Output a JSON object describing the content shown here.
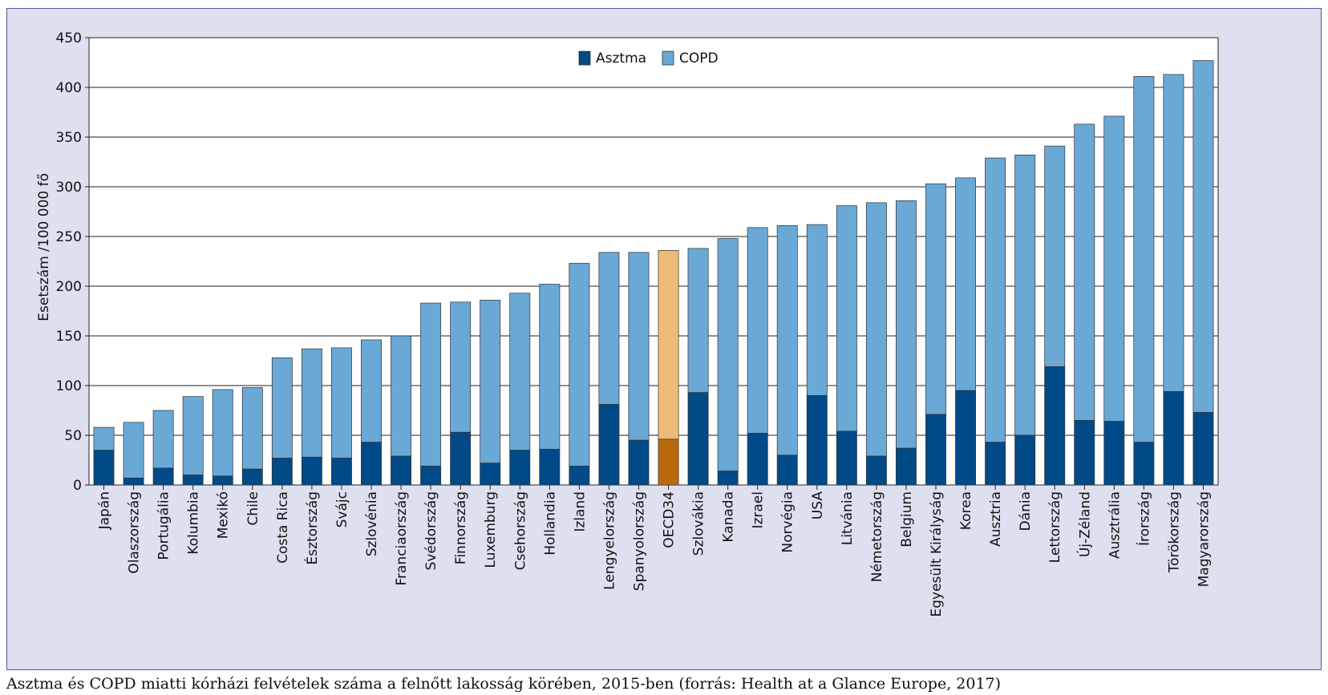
{
  "caption": "Asztma és COPD miatti kórházi felvételek száma a felnőtt lakosság körében, 2015-ben (forrás: Health at a Glance Europe, 2017)",
  "chart_data": {
    "type": "bar",
    "stacked": true,
    "ylabel": "Esetszám /100 000 fő",
    "ylim": [
      0,
      450
    ],
    "yticks": [
      0,
      50,
      100,
      150,
      200,
      250,
      300,
      350,
      400,
      450
    ],
    "grid": true,
    "legend_position": "top-center",
    "categories": [
      "Japán",
      "Olaszország",
      "Portugália",
      "Kolumbia",
      "Mexikó",
      "Chile",
      "Costa Rica",
      "Észtország",
      "Svájc",
      "Szlovénia",
      "Franciaország",
      "Svédország",
      "Finnország",
      "Luxemburg",
      "Csehország",
      "Hollandia",
      "Izland",
      "Lengyelország",
      "Spanyolország",
      "OECD34",
      "Szlovákia",
      "Kanada",
      "Izrael",
      "Norvégia",
      "USA",
      "Litvánia",
      "Németország",
      "Belgium",
      "Egyesült Királyság",
      "Korea",
      "Ausztria",
      "Dánia",
      "Lettország",
      "Új-Zéland",
      "Ausztrália",
      "Írország",
      "Törökország",
      "Magyarország"
    ],
    "highlight_category": "OECD34",
    "series": [
      {
        "name": "Asztma",
        "color": "#004a87",
        "highlight_color": "#b86a0c",
        "values": [
          35,
          7,
          17,
          10,
          9,
          16,
          27,
          28,
          27,
          43,
          29,
          19,
          53,
          22,
          35,
          36,
          19,
          81,
          45,
          46,
          93,
          14,
          52,
          30,
          90,
          54,
          29,
          37,
          71,
          95,
          43,
          50,
          119,
          65,
          64,
          43,
          94,
          73
        ]
      },
      {
        "name": "COPD",
        "color": "#6aa8d6",
        "highlight_color": "#edbb77",
        "values": [
          23,
          56,
          58,
          79,
          87,
          82,
          101,
          109,
          111,
          103,
          121,
          164,
          131,
          164,
          158,
          166,
          204,
          153,
          189,
          190,
          145,
          234,
          207,
          231,
          172,
          227,
          255,
          249,
          232,
          214,
          286,
          282,
          222,
          298,
          307,
          368,
          319,
          354
        ]
      }
    ]
  }
}
